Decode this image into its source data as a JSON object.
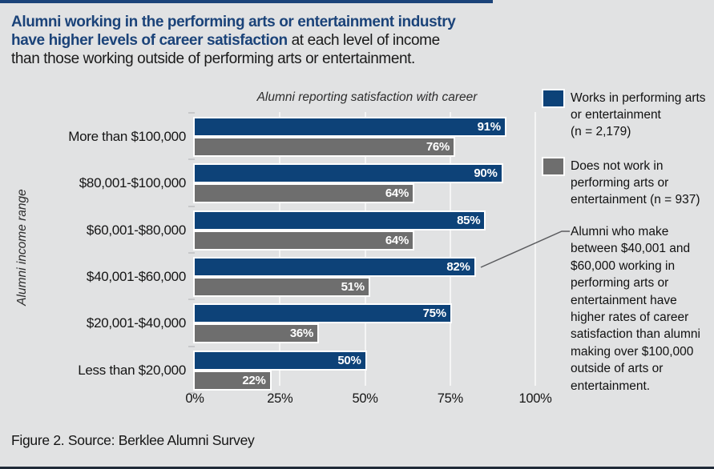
{
  "colors": {
    "background": "#e1e2e3",
    "accent_navy": "#1b4379",
    "bar_blue": "#0d4278",
    "bar_gray": "#6e6e6e",
    "top_rule": "#1b4379",
    "bottom_rule": "#1f2a38",
    "gridline": "rgba(255,255,255,0.65)",
    "callout_line": "#5a5b5e"
  },
  "title": {
    "bold_line1": "Alumni working in the performing arts or entertainment industry",
    "bold_line2": "have higher levels of career satisfaction",
    "plain_line2": " at each level of income",
    "plain_line3": "than those working outside of performing arts or entertainment."
  },
  "chart_data": {
    "type": "bar",
    "orientation": "horizontal",
    "subtitle": "Alumni reporting satisfaction with career",
    "ylabel": "Alumni income range",
    "categories": [
      "More than $100,000",
      "$80,001-$100,000",
      "$60,001-$80,000",
      "$40,001-$60,000",
      "$20,001-$40,000",
      "Less than $20,000"
    ],
    "series": [
      {
        "name": "Works in performing arts or entertainment (n = 2,179)",
        "color": "#0d4278",
        "values": [
          91,
          90,
          85,
          82,
          75,
          50
        ]
      },
      {
        "name": "Does not work in performing arts or entertainment (n = 937)",
        "color": "#6e6e6e",
        "values": [
          76,
          64,
          64,
          51,
          36,
          22
        ]
      }
    ],
    "value_suffix": "%",
    "x_ticks": [
      "0%",
      "25%",
      "50%",
      "75%",
      "100%"
    ],
    "xlim": [
      0,
      100
    ],
    "grid": true,
    "legend_position": "right"
  },
  "legend": {
    "items": [
      {
        "label": "Works in performing arts\nor entertainment\n(n = 2,179)",
        "color": "#0d4278"
      },
      {
        "label": "Does not work in\nperforming arts or\nentertainment (n = 937)",
        "color": "#6e6e6e"
      }
    ]
  },
  "annotation": {
    "text": "Alumni who make between $40,001 and $60,000 working in performing arts or entertainment have higher rates of career satisfaction than alumni making over $100,000 outside of arts or entertainment."
  },
  "footer": {
    "text": "Figure 2. Source: Berklee Alumni Survey"
  }
}
